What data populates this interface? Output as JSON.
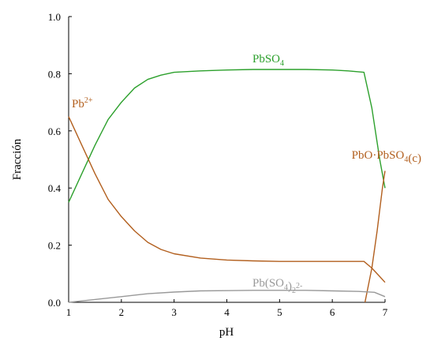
{
  "chart_data": {
    "type": "line",
    "xlabel": "pH",
    "ylabel": "Fracción",
    "xlim": [
      1,
      7
    ],
    "ylim": [
      0,
      1
    ],
    "xticks": [
      1,
      2,
      3,
      4,
      5,
      6,
      7
    ],
    "yticks": [
      0.0,
      0.2,
      0.4,
      0.6,
      0.8,
      1.0
    ],
    "ytick_labels": [
      "0.0",
      "0.2",
      "0.4",
      "0.6",
      "0.8",
      "1.0"
    ],
    "grid": false,
    "series": [
      {
        "name": "PbSO4",
        "color": "#2ca02c",
        "label_parts": [
          [
            "PbSO",
            "n"
          ],
          [
            "4",
            "sub"
          ]
        ],
        "x": [
          1.0,
          1.25,
          1.5,
          1.75,
          2.0,
          2.25,
          2.5,
          2.75,
          3.0,
          3.5,
          4.0,
          4.5,
          5.0,
          5.5,
          6.0,
          6.3,
          6.6,
          6.75,
          6.9,
          7.0
        ],
        "y": [
          0.35,
          0.45,
          0.55,
          0.64,
          0.7,
          0.75,
          0.78,
          0.795,
          0.805,
          0.81,
          0.813,
          0.815,
          0.815,
          0.815,
          0.813,
          0.81,
          0.805,
          0.68,
          0.5,
          0.4
        ]
      },
      {
        "name": "Pb2+",
        "color": "#b25f1e",
        "label_parts": [
          [
            "Pb",
            "n"
          ],
          [
            "2+",
            "sup"
          ]
        ],
        "x": [
          1.0,
          1.25,
          1.5,
          1.75,
          2.0,
          2.25,
          2.5,
          2.75,
          3.0,
          3.5,
          4.0,
          4.5,
          5.0,
          5.5,
          6.0,
          6.3,
          6.6,
          6.75,
          6.9,
          7.0
        ],
        "y": [
          0.65,
          0.55,
          0.45,
          0.36,
          0.3,
          0.25,
          0.21,
          0.185,
          0.17,
          0.155,
          0.148,
          0.145,
          0.143,
          0.143,
          0.143,
          0.143,
          0.143,
          0.12,
          0.09,
          0.07
        ]
      },
      {
        "name": "PbO·PbSO4(c)",
        "color": "#b25f1e",
        "label_parts": [
          [
            "PbO·PbSO",
            "n"
          ],
          [
            "4",
            "sub"
          ],
          [
            "(c)",
            "n"
          ]
        ],
        "x": [
          6.62,
          6.75,
          6.85,
          6.95,
          7.0
        ],
        "y": [
          0.0,
          0.12,
          0.25,
          0.4,
          0.46
        ]
      },
      {
        "name": "Pb(SO4)2 2-",
        "color": "#999999",
        "label_parts": [
          [
            "Pb(SO",
            "n"
          ],
          [
            "4",
            "sub"
          ],
          [
            ")",
            "n"
          ],
          [
            "2",
            "sub"
          ],
          [
            "2-",
            "sup"
          ]
        ],
        "x": [
          1.0,
          1.5,
          2.0,
          2.5,
          3.0,
          3.5,
          4.0,
          4.5,
          5.0,
          5.5,
          6.0,
          6.5,
          6.8,
          7.0
        ],
        "y": [
          0.0,
          0.01,
          0.02,
          0.03,
          0.036,
          0.04,
          0.041,
          0.042,
          0.042,
          0.042,
          0.04,
          0.038,
          0.035,
          0.02
        ]
      }
    ]
  }
}
